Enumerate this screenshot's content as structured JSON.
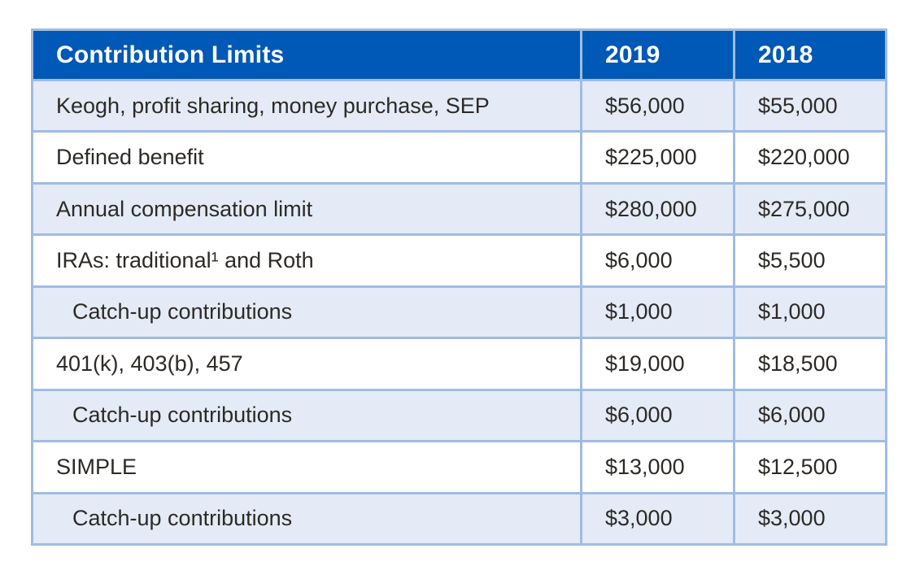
{
  "page": {
    "background": "#ffffff"
  },
  "table": {
    "title": "Contribution Limits",
    "columns": [
      {
        "key": "label",
        "label": "Contribution Limits"
      },
      {
        "key": "y2019",
        "label": "2019"
      },
      {
        "key": "y2018",
        "label": "2018"
      }
    ],
    "rows": [
      {
        "label": "Keogh, profit sharing, money purchase, SEP",
        "y2019": "$56,000",
        "y2018": "$55,000",
        "indent": false
      },
      {
        "label": "Defined benefit",
        "y2019": "$225,000",
        "y2018": "$220,000",
        "indent": false
      },
      {
        "label": "Annual compensation limit",
        "y2019": "$280,000",
        "y2018": "$275,000",
        "indent": false
      },
      {
        "label": "IRAs: traditional¹ and Roth",
        "y2019": "$6,000",
        "y2018": "$5,500",
        "indent": false
      },
      {
        "label": "Catch-up contributions",
        "y2019": "$1,000",
        "y2018": "$1,000",
        "indent": true
      },
      {
        "label": "401(k), 403(b), 457",
        "y2019": "$19,000",
        "y2018": "$18,500",
        "indent": false
      },
      {
        "label": "Catch-up contributions",
        "y2019": "$6,000",
        "y2018": "$6,000",
        "indent": true
      },
      {
        "label": "SIMPLE",
        "y2019": "$13,000",
        "y2018": "$12,500",
        "indent": false
      },
      {
        "label": "Catch-up contributions",
        "y2019": "$3,000",
        "y2018": "$3,000",
        "indent": true
      }
    ],
    "colors": {
      "header_bg": "#0058b7",
      "header_text": "#ffffff",
      "row_bg": "#ffffff",
      "row_alt_bg": "#e4ebf7",
      "border": "#a0bce2",
      "text": "#2d2a26",
      "page_bg": "#ffffff"
    }
  }
}
